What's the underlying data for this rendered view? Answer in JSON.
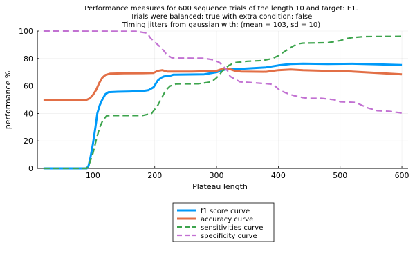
{
  "chart_data": {
    "type": "line",
    "title_lines": [
      "Performance measures for 600 sequence trials of the length 10 and target: E1.",
      "Trials were balanced: true with extra condition: false",
      "Timing jitters from gaussian with: (mean = 103, sd = 10)"
    ],
    "xlabel": "Plateau length",
    "ylabel": "performance %",
    "xlim": [
      10,
      610
    ],
    "ylim": [
      0,
      100
    ],
    "xticks": [
      100,
      200,
      300,
      400,
      500,
      600
    ],
    "yticks": [
      0,
      20,
      40,
      60,
      80,
      100
    ],
    "grid": true,
    "legend_position": "bottom-center, below plot",
    "series": [
      {
        "name": "f1 score curve",
        "color": "#009af9",
        "dash": "solid",
        "points": [
          [
            20,
            0
          ],
          [
            90,
            0
          ],
          [
            93,
            2
          ],
          [
            96,
            8
          ],
          [
            100,
            18
          ],
          [
            104,
            30
          ],
          [
            107,
            40
          ],
          [
            111,
            46
          ],
          [
            115,
            50
          ],
          [
            120,
            54
          ],
          [
            125,
            55.5
          ],
          [
            140,
            55.8
          ],
          [
            160,
            56
          ],
          [
            180,
            56.3
          ],
          [
            190,
            57
          ],
          [
            198,
            59
          ],
          [
            205,
            64
          ],
          [
            210,
            66
          ],
          [
            215,
            67
          ],
          [
            225,
            67.5
          ],
          [
            230,
            68.2
          ],
          [
            280,
            68.5
          ],
          [
            300,
            70
          ],
          [
            310,
            71.5
          ],
          [
            320,
            72.5
          ],
          [
            340,
            72.5
          ],
          [
            360,
            73
          ],
          [
            380,
            73.5
          ],
          [
            400,
            75
          ],
          [
            420,
            76
          ],
          [
            440,
            76.3
          ],
          [
            480,
            76
          ],
          [
            520,
            76.2
          ],
          [
            560,
            75.8
          ],
          [
            600,
            75.3
          ]
        ]
      },
      {
        "name": "accuracy curve",
        "color": "#e26f46",
        "dash": "solid",
        "points": [
          [
            20,
            50
          ],
          [
            90,
            50
          ],
          [
            95,
            51
          ],
          [
            100,
            53.5
          ],
          [
            105,
            57
          ],
          [
            110,
            62
          ],
          [
            115,
            66
          ],
          [
            120,
            68
          ],
          [
            128,
            69
          ],
          [
            150,
            69.2
          ],
          [
            180,
            69.3
          ],
          [
            198,
            69.5
          ],
          [
            205,
            71
          ],
          [
            212,
            71.5
          ],
          [
            220,
            70.5
          ],
          [
            260,
            70.5
          ],
          [
            290,
            70.8
          ],
          [
            300,
            71
          ],
          [
            310,
            72.5
          ],
          [
            320,
            72.5
          ],
          [
            330,
            71
          ],
          [
            340,
            70.5
          ],
          [
            380,
            70.3
          ],
          [
            400,
            71.5
          ],
          [
            420,
            72
          ],
          [
            440,
            71.5
          ],
          [
            480,
            71
          ],
          [
            520,
            70.5
          ],
          [
            560,
            69.5
          ],
          [
            600,
            68.5
          ]
        ]
      },
      {
        "name": "sensitivities curve",
        "color": "#3da44d",
        "dash": "dashed",
        "points": [
          [
            20,
            0
          ],
          [
            90,
            0
          ],
          [
            94,
            3
          ],
          [
            100,
            11
          ],
          [
            106,
            22
          ],
          [
            111,
            30
          ],
          [
            116,
            35
          ],
          [
            122,
            38.3
          ],
          [
            130,
            38.5
          ],
          [
            160,
            38.5
          ],
          [
            180,
            38.5
          ],
          [
            195,
            40
          ],
          [
            205,
            46
          ],
          [
            212,
            52
          ],
          [
            218,
            57
          ],
          [
            225,
            60
          ],
          [
            235,
            61.5
          ],
          [
            270,
            61.6
          ],
          [
            285,
            62.5
          ],
          [
            292,
            63
          ],
          [
            300,
            66
          ],
          [
            310,
            71
          ],
          [
            320,
            75
          ],
          [
            330,
            77
          ],
          [
            350,
            78
          ],
          [
            375,
            78.5
          ],
          [
            390,
            80
          ],
          [
            400,
            82
          ],
          [
            410,
            85
          ],
          [
            420,
            88
          ],
          [
            430,
            90.5
          ],
          [
            440,
            91.2
          ],
          [
            480,
            91.5
          ],
          [
            500,
            93
          ],
          [
            510,
            94.5
          ],
          [
            520,
            95.3
          ],
          [
            540,
            96
          ],
          [
            600,
            96.2
          ]
        ]
      },
      {
        "name": "specificity curve",
        "color": "#c271d2",
        "dash": "dashed",
        "points": [
          [
            20,
            100
          ],
          [
            170,
            99.8
          ],
          [
            188,
            98.5
          ],
          [
            193,
            95
          ],
          [
            200,
            92
          ],
          [
            210,
            88
          ],
          [
            215,
            85.5
          ],
          [
            220,
            82.5
          ],
          [
            228,
            80.5
          ],
          [
            240,
            80.3
          ],
          [
            280,
            80.2
          ],
          [
            295,
            79
          ],
          [
            305,
            77
          ],
          [
            318,
            71
          ],
          [
            322,
            67
          ],
          [
            330,
            65
          ],
          [
            338,
            63
          ],
          [
            355,
            62.5
          ],
          [
            370,
            62
          ],
          [
            385,
            61.5
          ],
          [
            392,
            61
          ],
          [
            402,
            57
          ],
          [
            412,
            55
          ],
          [
            425,
            53
          ],
          [
            440,
            51.5
          ],
          [
            450,
            51
          ],
          [
            470,
            51
          ],
          [
            490,
            50
          ],
          [
            500,
            48.5
          ],
          [
            525,
            48
          ],
          [
            535,
            46
          ],
          [
            545,
            44
          ],
          [
            560,
            42
          ],
          [
            580,
            41.5
          ],
          [
            600,
            40.3
          ]
        ]
      }
    ]
  }
}
